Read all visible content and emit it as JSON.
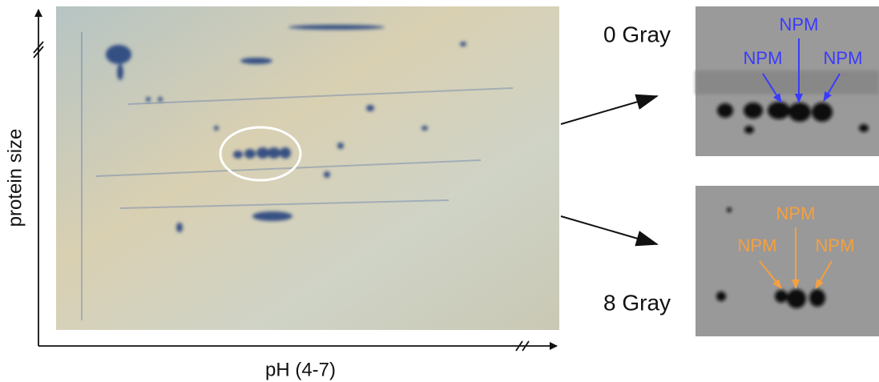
{
  "gel": {
    "y_axis_label": "protein size",
    "x_axis_label": "pH (4-7)"
  },
  "panels": [
    {
      "dose": "0 Gray",
      "labels": [
        "NPM",
        "NPM",
        "NPM"
      ]
    },
    {
      "dose": "8 Gray",
      "labels": [
        "NPM",
        "NPM",
        "NPM"
      ]
    }
  ]
}
